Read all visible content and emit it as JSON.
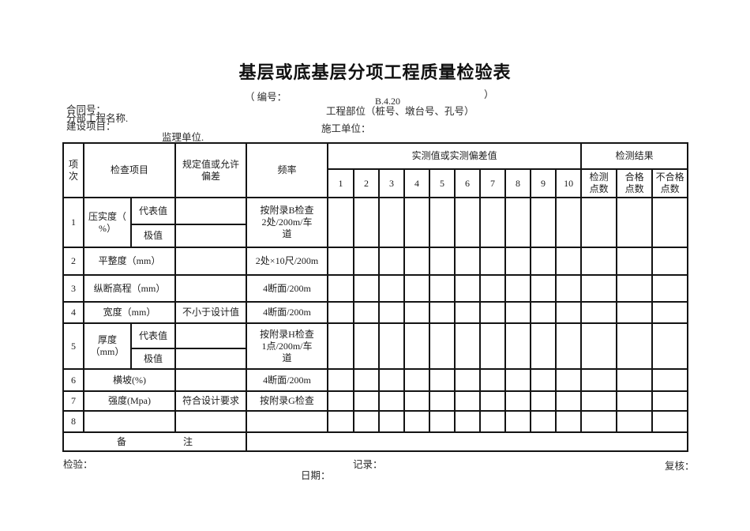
{
  "page": {
    "title": "基层或底基层分项工程质量检验表",
    "code_label": "（ 编号：",
    "code_close": "）",
    "form_number": "B.4.20",
    "meta": {
      "contract_no": "合同号：",
      "subdivision_name": "分部工程名称.",
      "construction_project": "建设项目：",
      "supervision_unit": "监理单位.",
      "work_location": "工程部位（桩号、墩台号、孔号）",
      "construction_unit": "施工单位："
    },
    "footer": {
      "inspector": "检验：",
      "recorder": "记录：",
      "reviewer": "复核：",
      "date": "日期："
    }
  },
  "table": {
    "headers": {
      "item_no": "项\n次",
      "inspection_item": "检查项目",
      "specified_value": "规定值或允许\n偏差",
      "frequency": "频率",
      "measured_values": "实测值或实测偏差值",
      "result": "检测结果",
      "point_numbers": [
        "1",
        "2",
        "3",
        "4",
        "5",
        "6",
        "7",
        "8",
        "9",
        "10"
      ],
      "checked_points": "检测\n点数",
      "qualified_points": "合格\n点数",
      "unqualified_points": "不合格\n点数"
    },
    "rows": {
      "r1": {
        "no": "1",
        "item": "压实度（\n%）",
        "sub1": "代表值",
        "sub2": "极值",
        "spec": "",
        "freq": "按附录B检查\n2处/200m/车\n道"
      },
      "r2": {
        "no": "2",
        "item": "平整度（mm）",
        "spec": "",
        "freq": "2处×10尺/200m"
      },
      "r3": {
        "no": "3",
        "item": "纵断高程（mm）",
        "spec": "",
        "freq": "4断面/200m"
      },
      "r4": {
        "no": "4",
        "item": "宽度（mm）",
        "spec": "不小于设计值",
        "freq": "4断面/200m"
      },
      "r5": {
        "no": "5",
        "item": "厚度\n（mm）",
        "sub1": "代表值",
        "sub2": "极值",
        "spec": "",
        "freq": "按附录H检查\n1点/200m/车\n道"
      },
      "r6": {
        "no": "6",
        "item": "横坡(%)",
        "spec": "",
        "freq": "4断面/200m"
      },
      "r7": {
        "no": "7",
        "item": "强度(Mpa)",
        "spec": "符合设计要求",
        "freq": "按附录G检查"
      },
      "r8": {
        "no": "8"
      },
      "note": {
        "label": "备　　　　　　注"
      }
    }
  }
}
